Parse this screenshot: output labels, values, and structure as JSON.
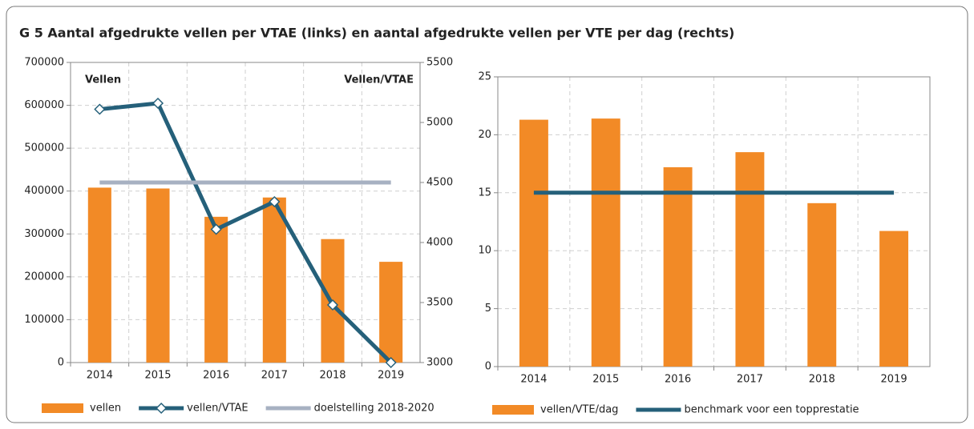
{
  "title": "G 5 Aantal afgedrukte vellen per VTAE (links) en aantal afgedrukte vellen per VTE per dag (rechts)",
  "chart_data": [
    {
      "type": "bar",
      "annotations": [
        "Vellen",
        "Vellen/VTAE"
      ],
      "categories": [
        "2014",
        "2015",
        "2016",
        "2017",
        "2018",
        "2019"
      ],
      "series": [
        {
          "name": "vellen",
          "type": "bar",
          "color": "#f28a26",
          "values": [
            408000,
            406000,
            340000,
            385000,
            288000,
            235000
          ]
        },
        {
          "name": "vellen/VTAE",
          "type": "line",
          "axis": "y2",
          "marker": "diamond",
          "color": "#25607a",
          "values": [
            5110,
            5160,
            4110,
            4340,
            3480,
            3000
          ]
        },
        {
          "name": "doelstelling 2018-2020",
          "type": "line",
          "axis": "y2",
          "color": "#a7b1c2",
          "values": [
            4500,
            4500,
            4500,
            4500,
            4500,
            4500
          ]
        }
      ],
      "ylim": [
        0,
        700000
      ],
      "yticks": [
        0,
        100000,
        200000,
        300000,
        400000,
        500000,
        600000,
        700000
      ],
      "y2lim": [
        3000,
        5500
      ],
      "y2ticks": [
        3000,
        3500,
        4000,
        4500,
        5000,
        5500
      ],
      "grid": true
    },
    {
      "type": "bar",
      "categories": [
        "2014",
        "2015",
        "2016",
        "2017",
        "2018",
        "2019"
      ],
      "series": [
        {
          "name": "vellen/VTE/dag",
          "type": "bar",
          "color": "#f28a26",
          "values": [
            21.3,
            21.4,
            17.2,
            18.5,
            14.1,
            11.7
          ]
        },
        {
          "name": "benchmark voor een topprestatie",
          "type": "line",
          "color": "#25607a",
          "values": [
            15,
            15,
            15,
            15,
            15,
            15
          ]
        }
      ],
      "ylim": [
        0,
        25
      ],
      "yticks": [
        0,
        5,
        10,
        15,
        20,
        25
      ],
      "grid": true
    }
  ]
}
